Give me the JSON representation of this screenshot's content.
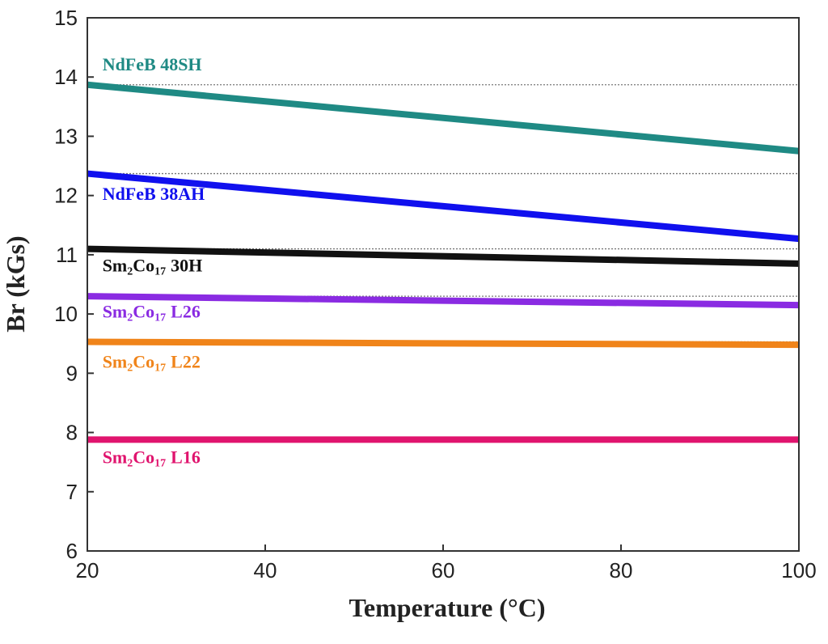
{
  "chart_data": {
    "type": "line",
    "title": "",
    "xlabel": "Temperature (°C)",
    "ylabel": "Br (kGs)",
    "xlim": [
      20,
      100
    ],
    "ylim": [
      6,
      15
    ],
    "xticks": [
      "20",
      "40",
      "60",
      "80",
      "100"
    ],
    "yticks": [
      "6",
      "7",
      "8",
      "9",
      "10",
      "11",
      "12",
      "13",
      "14",
      "15"
    ],
    "grid": false,
    "reference_lines": "dotted horizontal lines at each series' 20 °C value",
    "series": [
      {
        "name": "NdFeB 48SH",
        "label_main": "NdFeB 48SH",
        "label_sub1": "",
        "label_mid": "",
        "label_sub2": "",
        "label_tail": "",
        "color": "#1f8a84",
        "x": [
          20,
          100
        ],
        "y": [
          13.87,
          12.75
        ],
        "ref": 13.87,
        "label_anchor": [
          21.7,
          14.11
        ]
      },
      {
        "name": "NdFeB 38AH",
        "label_main": "NdFeB 38AH",
        "label_sub1": "",
        "label_mid": "",
        "label_sub2": "",
        "label_tail": "",
        "color": "#1010ee",
        "x": [
          20,
          100
        ],
        "y": [
          12.37,
          11.27
        ],
        "ref": 12.37,
        "label_anchor": [
          21.7,
          11.93
        ]
      },
      {
        "name": "Sm2Co17 30H",
        "label_main": "Sm",
        "label_sub1": "2",
        "label_mid": "Co",
        "label_sub2": "17",
        "label_tail": "30H",
        "color": "#111111",
        "x": [
          20,
          100
        ],
        "y": [
          11.1,
          10.85
        ],
        "ref": 11.1,
        "label_anchor": [
          21.7,
          10.72
        ]
      },
      {
        "name": "Sm2Co17 L26",
        "label_main": "Sm",
        "label_sub1": "2",
        "label_mid": "Co",
        "label_sub2": "17",
        "label_tail": "L26",
        "color": "#8a2be2",
        "x": [
          20,
          100
        ],
        "y": [
          10.3,
          10.15
        ],
        "ref": 10.3,
        "label_anchor": [
          21.7,
          9.94
        ]
      },
      {
        "name": "Sm2Co17 L22",
        "label_main": "Sm",
        "label_sub1": "2",
        "label_mid": "Co",
        "label_sub2": "17",
        "label_tail": "L22",
        "color": "#f0841a",
        "x": [
          20,
          100
        ],
        "y": [
          9.53,
          9.48
        ],
        "ref": 9.53,
        "label_anchor": [
          21.7,
          9.09
        ]
      },
      {
        "name": "Sm2Co17 L16",
        "label_main": "Sm",
        "label_sub1": "2",
        "label_mid": "Co",
        "label_sub2": "17",
        "label_tail": "L16",
        "color": "#e0146e",
        "x": [
          20,
          100
        ],
        "y": [
          7.88,
          7.88
        ],
        "ref": 7.88,
        "label_anchor": [
          21.7,
          7.48
        ]
      }
    ]
  }
}
